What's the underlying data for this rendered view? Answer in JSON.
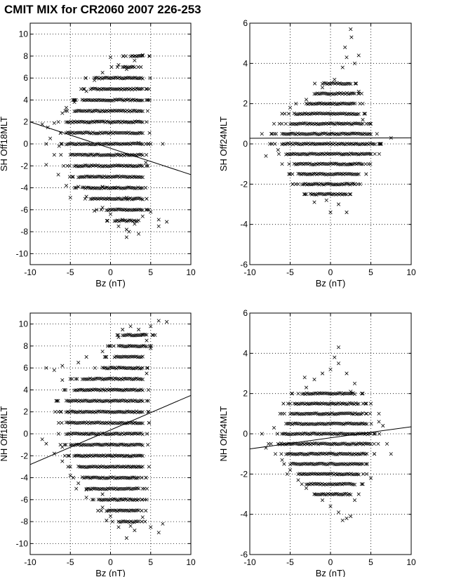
{
  "figure": {
    "title": "CMIT MIX for CR2060 2007 226-253"
  },
  "chart_data": [
    {
      "type": "scatter",
      "id": "sh-off18",
      "xlabel": "Bz (nT)",
      "ylabel": "SH Off18MLT",
      "xlim": [
        -10,
        10
      ],
      "ylim": [
        -11,
        11
      ],
      "xticks": [
        -10,
        -5,
        0,
        5,
        10
      ],
      "yticks": [
        -10,
        -8,
        -6,
        -4,
        -2,
        0,
        2,
        4,
        6,
        8,
        10
      ],
      "grid": true,
      "marker": "x",
      "fit_line": {
        "x": [
          -10,
          10
        ],
        "y": [
          2.0,
          -2.8
        ]
      },
      "points": [
        [
          -8.5,
          1.8
        ],
        [
          -7.8,
          1.5
        ],
        [
          -7,
          1.9
        ],
        [
          -6,
          2.8
        ],
        [
          -5.5,
          3.3
        ],
        [
          -4.5,
          3.8
        ],
        [
          -3,
          4.8
        ],
        [
          -2,
          5.8
        ],
        [
          -1,
          6.5
        ],
        [
          0,
          7.9
        ],
        [
          1,
          7.2
        ],
        [
          2,
          6.8
        ],
        [
          3,
          7.6
        ],
        [
          4,
          8.1
        ],
        [
          -8,
          -1.9
        ],
        [
          -6.5,
          -2.8
        ],
        [
          -5.5,
          -3.8
        ],
        [
          -5,
          -4.9
        ],
        [
          -4,
          -3.9
        ],
        [
          -3,
          -4.8
        ],
        [
          -1,
          -5.8
        ],
        [
          1.5,
          -6.9
        ],
        [
          2,
          -7.8
        ],
        [
          3,
          -7.3
        ],
        [
          4,
          -6.6
        ],
        [
          5,
          -6.2
        ],
        [
          6,
          -6.9
        ],
        [
          7,
          -7.1
        ],
        [
          3.5,
          -8.2
        ],
        [
          2,
          -8.5
        ],
        [
          1,
          -7.5
        ],
        [
          0,
          -6.4
        ],
        [
          -2,
          -6.1
        ],
        [
          2.3,
          -8
        ],
        [
          3,
          -6
        ],
        [
          6,
          -7.5
        ],
        [
          -7.5,
          0.5
        ],
        [
          -7,
          -1
        ],
        [
          -8,
          0
        ],
        [
          3.5,
          0.1
        ],
        [
          4.5,
          2
        ],
        [
          5,
          0
        ],
        [
          6.5,
          0
        ],
        [
          -6.4,
          -0.2
        ],
        [
          -1,
          -3.9
        ],
        [
          0.5,
          -4
        ],
        [
          2,
          -4.9
        ],
        [
          4.4,
          -1.7
        ]
      ],
      "bands": [
        {
          "y": 8,
          "x": [
            2.5,
            4.0
          ]
        },
        {
          "y": 7,
          "x": [
            1.5,
            3.0
          ]
        },
        {
          "y": 6,
          "x": [
            -2.0,
            4.0
          ]
        },
        {
          "y": 5,
          "x": [
            -2.5,
            4.0
          ]
        },
        {
          "y": 4,
          "x": [
            -3.5,
            4.0
          ]
        },
        {
          "y": 3,
          "x": [
            -4.5,
            4.0
          ]
        },
        {
          "y": 2,
          "x": [
            -5.5,
            4.0
          ]
        },
        {
          "y": 1,
          "x": [
            -5.5,
            4.0
          ]
        },
        {
          "y": 0,
          "x": [
            -5.5,
            4.0
          ]
        },
        {
          "y": -1,
          "x": [
            -5.0,
            4.0
          ]
        },
        {
          "y": -2,
          "x": [
            -4.5,
            4.0
          ]
        },
        {
          "y": -3,
          "x": [
            -4.0,
            4.0
          ]
        },
        {
          "y": -4,
          "x": [
            -3.5,
            4.0
          ]
        },
        {
          "y": -5,
          "x": [
            -2.5,
            4.0
          ]
        },
        {
          "y": -6,
          "x": [
            -0.5,
            4.0
          ]
        },
        {
          "y": -7,
          "x": [
            0.5,
            3.5
          ]
        }
      ]
    },
    {
      "type": "scatter",
      "id": "sh-off24",
      "xlabel": "Bz (nT)",
      "ylabel": "SH Off24MLT",
      "xlim": [
        -10,
        10
      ],
      "ylim": [
        -6,
        6
      ],
      "xticks": [
        -10,
        -5,
        0,
        5,
        10
      ],
      "yticks": [
        -6,
        -4,
        -2,
        0,
        2,
        4,
        6
      ],
      "grid": true,
      "marker": "x",
      "fit_line": {
        "x": [
          -10,
          10
        ],
        "y": [
          0.28,
          0.3
        ]
      },
      "points": [
        [
          -8.5,
          0.5
        ],
        [
          -7,
          1
        ],
        [
          -6,
          1.5
        ],
        [
          -5,
          1.8
        ],
        [
          -3,
          2.2
        ],
        [
          -1,
          2.8
        ],
        [
          0.5,
          3.2
        ],
        [
          1.5,
          3.8
        ],
        [
          2.5,
          5.7
        ],
        [
          2.6,
          5.3
        ],
        [
          1.8,
          4.8
        ],
        [
          2,
          4.3
        ],
        [
          3,
          4
        ],
        [
          3.5,
          4.4
        ],
        [
          6,
          0
        ],
        [
          7.5,
          0.3
        ],
        [
          5,
          -0.5
        ],
        [
          -8,
          -0.6
        ],
        [
          -6,
          -1
        ],
        [
          -5,
          -1.5
        ],
        [
          -4,
          -2
        ],
        [
          -3,
          -2.5
        ],
        [
          -2,
          -2.9
        ],
        [
          0,
          -3.4
        ],
        [
          2,
          -3.4
        ],
        [
          1,
          -3
        ],
        [
          3,
          -2
        ],
        [
          2.5,
          -1
        ],
        [
          -6.5,
          -0.3
        ],
        [
          -7.5,
          0
        ],
        [
          4,
          1.2
        ],
        [
          3.5,
          2.6
        ],
        [
          -0.5,
          -2.8
        ]
      ],
      "bands": [
        {
          "y": 3,
          "x": [
            -1.0,
            2.5
          ]
        },
        {
          "y": 2.5,
          "x": [
            -2.0,
            3.0
          ]
        },
        {
          "y": 2,
          "x": [
            -3.0,
            3.0
          ]
        },
        {
          "y": 1.5,
          "x": [
            -4.5,
            3.5
          ]
        },
        {
          "y": 1,
          "x": [
            -5.0,
            4.0
          ]
        },
        {
          "y": 0.5,
          "x": [
            -6.0,
            5.0
          ]
        },
        {
          "y": 0,
          "x": [
            -6.0,
            5.5
          ]
        },
        {
          "y": -0.5,
          "x": [
            -5.5,
            5.0
          ]
        },
        {
          "y": -1,
          "x": [
            -4.5,
            4.0
          ]
        },
        {
          "y": -1.5,
          "x": [
            -4.0,
            3.5
          ]
        },
        {
          "y": -2,
          "x": [
            -3.5,
            3.0
          ]
        },
        {
          "y": -2.5,
          "x": [
            -2.5,
            2.0
          ]
        }
      ]
    },
    {
      "type": "scatter",
      "id": "nh-off18",
      "xlabel": "Bz (nT)",
      "ylabel": "NH Off18MLT",
      "xlim": [
        -10,
        10
      ],
      "ylim": [
        -11,
        11
      ],
      "xticks": [
        -10,
        -5,
        0,
        5,
        10
      ],
      "yticks": [
        -10,
        -8,
        -6,
        -4,
        -2,
        0,
        2,
        4,
        6,
        8,
        10
      ],
      "grid": true,
      "marker": "x",
      "fit_line": {
        "x": [
          -10,
          10
        ],
        "y": [
          -2.8,
          3.5
        ]
      },
      "points": [
        [
          -8,
          6
        ],
        [
          -7,
          5.8
        ],
        [
          -6,
          6.2
        ],
        [
          -5,
          5
        ],
        [
          -4,
          6.5
        ],
        [
          -3,
          7
        ],
        [
          -1,
          7.5
        ],
        [
          0,
          8
        ],
        [
          1,
          8.8
        ],
        [
          1.5,
          9.5
        ],
        [
          2.5,
          9.8
        ],
        [
          3.5,
          9.5
        ],
        [
          4,
          9
        ],
        [
          5,
          9.8
        ],
        [
          6,
          10.3
        ],
        [
          7,
          10.2
        ],
        [
          4.5,
          8.5
        ],
        [
          5,
          7.8
        ],
        [
          -8,
          -0.9
        ],
        [
          -7,
          -1.8
        ],
        [
          -6,
          -2.5
        ],
        [
          -5,
          -3.8
        ],
        [
          -4,
          -4.5
        ],
        [
          -3,
          -5.8
        ],
        [
          -1,
          -6.7
        ],
        [
          0,
          -7.5
        ],
        [
          1,
          -8.5
        ],
        [
          2,
          -9.5
        ],
        [
          3,
          -8.8
        ],
        [
          4,
          -7.6
        ],
        [
          5,
          -8.5
        ],
        [
          6,
          -9
        ],
        [
          6.5,
          -8.2
        ],
        [
          -0.5,
          -7.9
        ],
        [
          2.5,
          -8.4
        ],
        [
          -6,
          -1.2
        ],
        [
          -8.5,
          -0.5
        ],
        [
          4.5,
          5.5
        ],
        [
          -6,
          4.9
        ],
        [
          -1,
          -5.5
        ],
        [
          -3,
          -5.1
        ]
      ],
      "bands": [
        {
          "y": 9,
          "x": [
            1.5,
            4.5
          ]
        },
        {
          "y": 8,
          "x": [
            1.0,
            4.5
          ]
        },
        {
          "y": 7,
          "x": [
            0.5,
            4.0
          ]
        },
        {
          "y": 6,
          "x": [
            -1.0,
            4.0
          ]
        },
        {
          "y": 5,
          "x": [
            -3.5,
            4.0
          ]
        },
        {
          "y": 4,
          "x": [
            -4.5,
            4.0
          ]
        },
        {
          "y": 3,
          "x": [
            -5.5,
            4.0
          ]
        },
        {
          "y": 2,
          "x": [
            -5.5,
            4.0
          ]
        },
        {
          "y": 1,
          "x": [
            -5.5,
            4.0
          ]
        },
        {
          "y": 0,
          "x": [
            -5.5,
            4.0
          ]
        },
        {
          "y": -1,
          "x": [
            -5.0,
            4.0
          ]
        },
        {
          "y": -2,
          "x": [
            -4.5,
            4.0
          ]
        },
        {
          "y": -3,
          "x": [
            -4.0,
            4.0
          ]
        },
        {
          "y": -4,
          "x": [
            -3.5,
            3.5
          ]
        },
        {
          "y": -5,
          "x": [
            -3.0,
            3.5
          ]
        },
        {
          "y": -6,
          "x": [
            -1.5,
            3.5
          ]
        },
        {
          "y": -7,
          "x": [
            -0.5,
            3.5
          ]
        },
        {
          "y": -8,
          "x": [
            1.0,
            3.5
          ]
        }
      ]
    },
    {
      "type": "scatter",
      "id": "nh-off24",
      "xlabel": "Bz (nT)",
      "ylabel": "NH Off24MLT",
      "xlim": [
        -10,
        10
      ],
      "ylim": [
        -6,
        6
      ],
      "xticks": [
        -10,
        -5,
        0,
        5,
        10
      ],
      "yticks": [
        -6,
        -4,
        -2,
        0,
        2,
        4,
        6
      ],
      "grid": true,
      "marker": "x",
      "fit_line": {
        "x": [
          -10,
          10
        ],
        "y": [
          -0.75,
          0.35
        ]
      },
      "points": [
        [
          -8.5,
          0
        ],
        [
          -7,
          0.3
        ],
        [
          -6,
          1
        ],
        [
          -5,
          1.5
        ],
        [
          -4,
          2
        ],
        [
          -3,
          2.3
        ],
        [
          -2,
          2.7
        ],
        [
          -1,
          3
        ],
        [
          0,
          3.2
        ],
        [
          1,
          3.5
        ],
        [
          2,
          3
        ],
        [
          3,
          2.5
        ],
        [
          4,
          2
        ],
        [
          5,
          1.5
        ],
        [
          6,
          1
        ],
        [
          6.5,
          0.4
        ],
        [
          7,
          -0.5
        ],
        [
          7.5,
          -1
        ],
        [
          -8,
          -0.7
        ],
        [
          -6,
          -1.3
        ],
        [
          -5,
          -1.8
        ],
        [
          -4,
          -2.3
        ],
        [
          -3,
          -2.7
        ],
        [
          -2,
          -3
        ],
        [
          -1,
          -3.3
        ],
        [
          0,
          -3.6
        ],
        [
          1,
          -3.9
        ],
        [
          2,
          -4.2
        ],
        [
          1.5,
          -4.3
        ],
        [
          2.5,
          -4.1
        ],
        [
          3,
          -3.3
        ],
        [
          4,
          -2.5
        ],
        [
          5,
          -2.2
        ],
        [
          1,
          4.3
        ],
        [
          0.5,
          3.8
        ],
        [
          6,
          0.6
        ],
        [
          -3.2,
          2.8
        ],
        [
          2.5,
          2.1
        ],
        [
          3.5,
          -3
        ]
      ],
      "bands": [
        {
          "y": 2,
          "x": [
            -3.5,
            3.0
          ]
        },
        {
          "y": 1.5,
          "x": [
            -4.5,
            3.5
          ]
        },
        {
          "y": 1,
          "x": [
            -5.0,
            4.0
          ]
        },
        {
          "y": 0.5,
          "x": [
            -5.5,
            4.5
          ]
        },
        {
          "y": 0,
          "x": [
            -6.0,
            5.0
          ]
        },
        {
          "y": -0.5,
          "x": [
            -6.5,
            5.0
          ]
        },
        {
          "y": -1,
          "x": [
            -5.5,
            4.5
          ]
        },
        {
          "y": -1.5,
          "x": [
            -5.0,
            4.0
          ]
        },
        {
          "y": -2,
          "x": [
            -4.0,
            3.5
          ]
        },
        {
          "y": -2.5,
          "x": [
            -3.0,
            3.0
          ]
        },
        {
          "y": -3,
          "x": [
            -2.0,
            2.5
          ]
        }
      ]
    }
  ]
}
